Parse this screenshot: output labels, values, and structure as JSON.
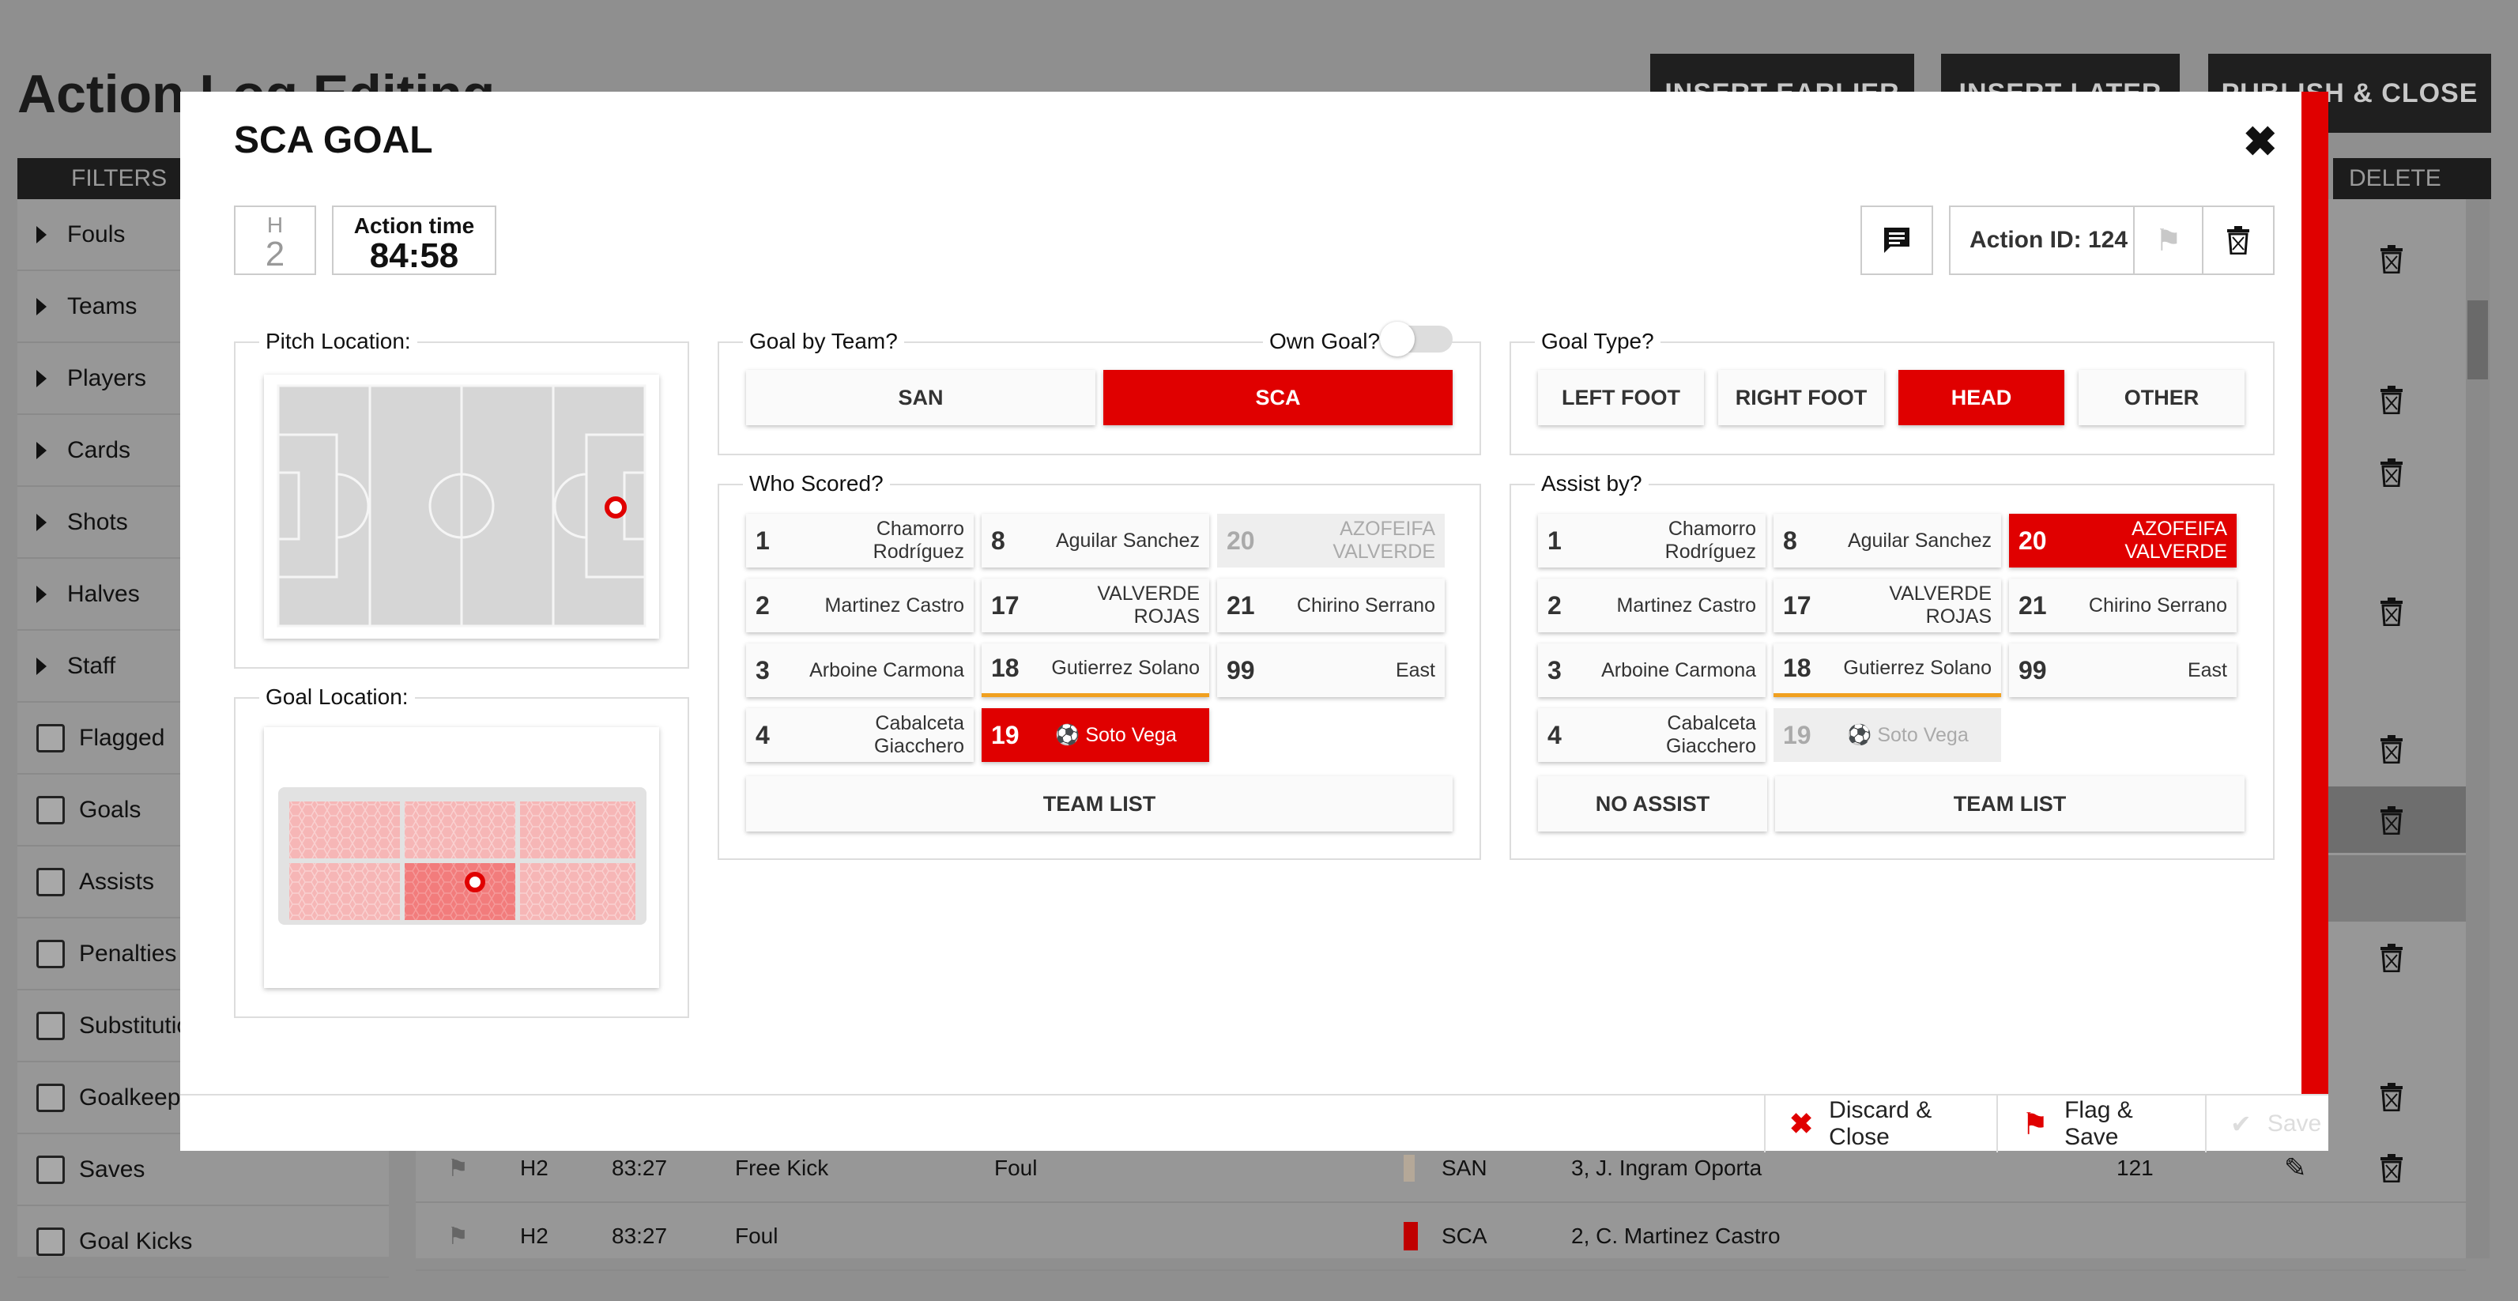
{
  "background": {
    "title": "Action Log Editing",
    "buttons": [
      "INSERT EARLIER",
      "INSERT LATER",
      "PUBLISH & CLOSE"
    ],
    "filters_header": "FILTERS",
    "delete_header": "DELETE",
    "filters": [
      {
        "label": "Fouls",
        "kind": "expand"
      },
      {
        "label": "Teams",
        "kind": "expand"
      },
      {
        "label": "Players",
        "kind": "expand"
      },
      {
        "label": "Cards",
        "kind": "expand"
      },
      {
        "label": "Shots",
        "kind": "expand"
      },
      {
        "label": "Halves",
        "kind": "expand"
      },
      {
        "label": "Staff",
        "kind": "expand"
      },
      {
        "label": "Flagged",
        "kind": "check"
      },
      {
        "label": "Goals",
        "kind": "check"
      },
      {
        "label": "Assists",
        "kind": "check"
      },
      {
        "label": "Penalties",
        "kind": "check"
      },
      {
        "label": "Substitutio",
        "kind": "check"
      },
      {
        "label": "Goalkeepe",
        "kind": "check"
      },
      {
        "label": "Saves",
        "kind": "check"
      },
      {
        "label": "Goal Kicks",
        "kind": "check"
      }
    ],
    "rows": [
      {
        "half": "H2",
        "time": "83:27",
        "action": "Free Kick",
        "detail": "Foul",
        "team": "SAN",
        "player": "3, J. Ingram Oporta",
        "id": "121"
      },
      {
        "half": "H2",
        "time": "83:27",
        "action": "Foul",
        "detail": "",
        "team": "SCA",
        "player": "2, C. Martinez Castro",
        "id": ""
      }
    ]
  },
  "modal": {
    "title": "SCA GOAL",
    "half_label": "H",
    "half_value": "2",
    "action_time_label": "Action time",
    "action_time_value": "84:58",
    "action_id": "Action ID: 124",
    "pitch_location_label": "Pitch Location:",
    "goal_location_label": "Goal Location:",
    "goal_by_team_label": "Goal by Team?",
    "own_goal_label": "Own Goal?",
    "own_goal_on": false,
    "teams": [
      {
        "label": "SAN",
        "selected": false
      },
      {
        "label": "SCA",
        "selected": true
      }
    ],
    "goal_type_label": "Goal Type?",
    "goal_types": [
      {
        "label": "LEFT FOOT",
        "selected": false
      },
      {
        "label": "RIGHT FOOT",
        "selected": false
      },
      {
        "label": "HEAD",
        "selected": true
      },
      {
        "label": "OTHER",
        "selected": false
      }
    ],
    "who_scored_label": "Who Scored?",
    "assist_label": "Assist by?",
    "scorers": [
      {
        "num": "1",
        "name": "Chamorro Rodríguez",
        "state": ""
      },
      {
        "num": "8",
        "name": "Aguilar Sanchez",
        "state": ""
      },
      {
        "num": "20",
        "name": "AZOFEIFA VALVERDE",
        "state": "dis"
      },
      {
        "num": "2",
        "name": "Martinez Castro",
        "state": ""
      },
      {
        "num": "17",
        "name": "VALVERDE ROJAS",
        "state": ""
      },
      {
        "num": "21",
        "name": "Chirino Serrano",
        "state": ""
      },
      {
        "num": "3",
        "name": "Arboine Carmona",
        "state": ""
      },
      {
        "num": "18",
        "name": "Gutierrez Solano",
        "state": "ora"
      },
      {
        "num": "99",
        "name": "East",
        "state": ""
      },
      {
        "num": "4",
        "name": "Cabalceta Giacchero",
        "state": ""
      },
      {
        "num": "19",
        "name": "Soto Vega",
        "state": "sel"
      }
    ],
    "assists": [
      {
        "num": "1",
        "name": "Chamorro Rodríguez",
        "state": ""
      },
      {
        "num": "8",
        "name": "Aguilar Sanchez",
        "state": ""
      },
      {
        "num": "20",
        "name": "AZOFEIFA VALVERDE",
        "state": "sel"
      },
      {
        "num": "2",
        "name": "Martinez Castro",
        "state": ""
      },
      {
        "num": "17",
        "name": "VALVERDE ROJAS",
        "state": ""
      },
      {
        "num": "21",
        "name": "Chirino Serrano",
        "state": ""
      },
      {
        "num": "3",
        "name": "Arboine Carmona",
        "state": ""
      },
      {
        "num": "18",
        "name": "Gutierrez Solano",
        "state": "ora"
      },
      {
        "num": "99",
        "name": "East",
        "state": ""
      },
      {
        "num": "4",
        "name": "Cabalceta Giacchero",
        "state": ""
      },
      {
        "num": "19",
        "name": "Soto Vega",
        "state": "dis"
      }
    ],
    "team_list_label": "TEAM LIST",
    "no_assist_label": "NO ASSIST",
    "footer": {
      "discard": "Discard & Close",
      "flag_save": "Flag & Save",
      "save": "Save"
    }
  },
  "colors": {
    "accent": "#e00000",
    "highlight": "#f0a020"
  }
}
